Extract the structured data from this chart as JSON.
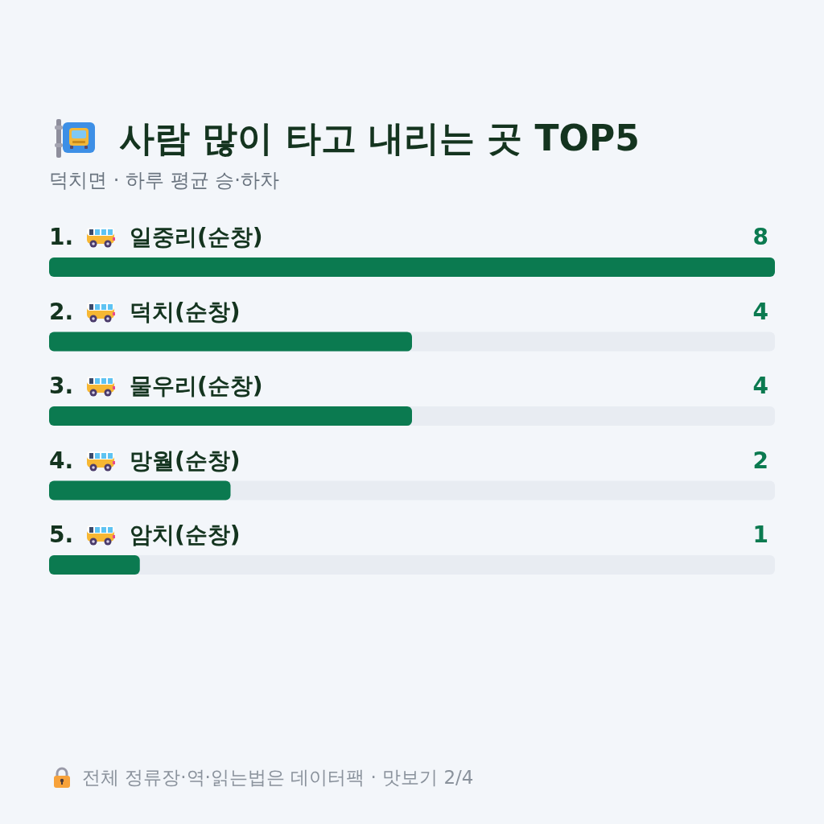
{
  "chart_data": {
    "type": "bar",
    "orientation": "horizontal",
    "title": "사람 많이 타고 내리는 곳 TOP5",
    "subtitle": "덕치면 · 하루 평균 승·하차",
    "categories": [
      "1. 일중리(순창)",
      "2. 덕치(순창)",
      "3. 물우리(순창)",
      "4. 망월(순창)",
      "5. 암치(순창)"
    ],
    "values": [
      8,
      4,
      4,
      2,
      1
    ],
    "color": "#0b7a50",
    "data_labels": true,
    "annotations": [
      "전체 정류장·역·읽는법은 데이터팩 · 맛보기 2/4"
    ]
  }
}
